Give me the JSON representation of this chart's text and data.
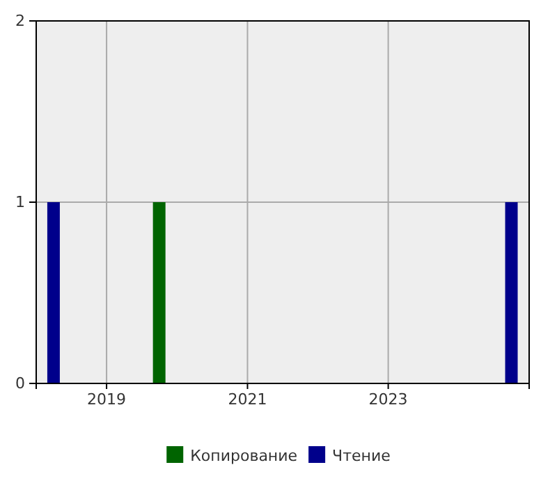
{
  "chart_data": {
    "type": "bar",
    "xlim": [
      "2018-01",
      "2025-01"
    ],
    "xticks": [
      {
        "value": "2019-01",
        "label": "2019"
      },
      {
        "value": "2021-01",
        "label": "2021"
      },
      {
        "value": "2023-01",
        "label": "2023"
      }
    ],
    "ylim": [
      0,
      2
    ],
    "yticks": [
      0,
      1,
      2
    ],
    "grid": true,
    "legend": "bottom",
    "series": [
      {
        "name": "Копирование",
        "color": "#006400",
        "x": [
          "2019-10"
        ],
        "values": [
          1
        ]
      },
      {
        "name": "Чтение",
        "color": "#00008b",
        "x": [
          "2018-04",
          "2024-10"
        ],
        "values": [
          1,
          1
        ]
      }
    ]
  }
}
